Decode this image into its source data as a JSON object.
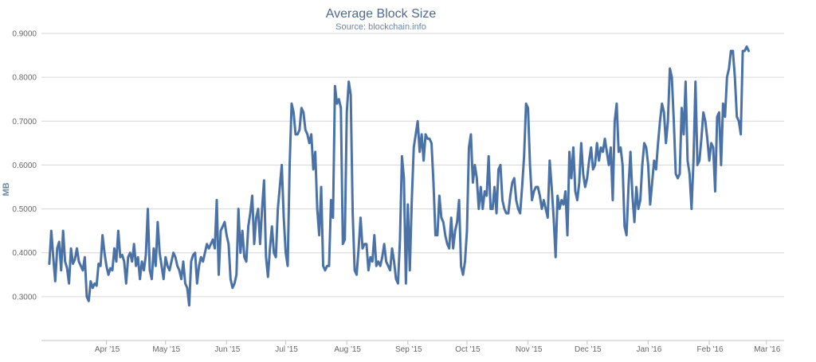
{
  "chart_data": {
    "type": "line",
    "title": "Average Block Size",
    "subtitle": "Source: blockchain.info",
    "xlabel": "",
    "ylabel": "MB",
    "ylim": [
      0.2,
      0.9
    ],
    "yticks": [
      0.3,
      0.4,
      0.5,
      0.6,
      0.7,
      0.8,
      0.9
    ],
    "ytick_labels": [
      "0.3000",
      "0.4000",
      "0.5000",
      "0.6000",
      "0.7000",
      "0.8000",
      "0.9000"
    ],
    "x_range_days": [
      -2,
      375
    ],
    "xticks": [
      {
        "label": "Apr '15",
        "day": 31
      },
      {
        "label": "May '15",
        "day": 61
      },
      {
        "label": "Jun '15",
        "day": 92
      },
      {
        "label": "Jul '15",
        "day": 122
      },
      {
        "label": "Aug '15",
        "day": 153
      },
      {
        "label": "Sep '15",
        "day": 184
      },
      {
        "label": "Oct '15",
        "day": 214
      },
      {
        "label": "Nov '15",
        "day": 245
      },
      {
        "label": "Dec '15",
        "day": 275
      },
      {
        "label": "Jan '16",
        "day": 306
      },
      {
        "label": "Feb '16",
        "day": 337
      },
      {
        "label": "Mar '16",
        "day": 366
      }
    ],
    "grid": true,
    "legend": "none",
    "color": "#4a72a6",
    "series": [
      {
        "name": "Average Block Size",
        "start_day": 2,
        "values": [
          0.375,
          0.45,
          0.39,
          0.335,
          0.41,
          0.425,
          0.36,
          0.45,
          0.38,
          0.365,
          0.33,
          0.41,
          0.375,
          0.385,
          0.41,
          0.38,
          0.37,
          0.36,
          0.39,
          0.3,
          0.29,
          0.335,
          0.32,
          0.33,
          0.325,
          0.375,
          0.37,
          0.44,
          0.4,
          0.37,
          0.35,
          0.365,
          0.36,
          0.41,
          0.38,
          0.45,
          0.39,
          0.395,
          0.38,
          0.33,
          0.39,
          0.4,
          0.38,
          0.42,
          0.37,
          0.39,
          0.34,
          0.38,
          0.36,
          0.395,
          0.5,
          0.36,
          0.34,
          0.41,
          0.37,
          0.47,
          0.4,
          0.37,
          0.34,
          0.39,
          0.37,
          0.36,
          0.38,
          0.4,
          0.39,
          0.37,
          0.36,
          0.34,
          0.38,
          0.33,
          0.32,
          0.28,
          0.38,
          0.395,
          0.4,
          0.33,
          0.37,
          0.39,
          0.38,
          0.4,
          0.42,
          0.41,
          0.42,
          0.43,
          0.41,
          0.52,
          0.35,
          0.45,
          0.46,
          0.47,
          0.44,
          0.42,
          0.34,
          0.32,
          0.33,
          0.35,
          0.5,
          0.4,
          0.45,
          0.39,
          0.38,
          0.46,
          0.49,
          0.53,
          0.42,
          0.48,
          0.5,
          0.42,
          0.5,
          0.565,
          0.39,
          0.345,
          0.41,
          0.46,
          0.4,
          0.39,
          0.5,
          0.55,
          0.6,
          0.48,
          0.4,
          0.37,
          0.6,
          0.74,
          0.72,
          0.67,
          0.67,
          0.68,
          0.73,
          0.72,
          0.68,
          0.67,
          0.65,
          0.67,
          0.59,
          0.63,
          0.5,
          0.44,
          0.55,
          0.37,
          0.36,
          0.37,
          0.37,
          0.52,
          0.48,
          0.78,
          0.74,
          0.75,
          0.73,
          0.42,
          0.43,
          0.72,
          0.79,
          0.76,
          0.49,
          0.36,
          0.35,
          0.41,
          0.48,
          0.41,
          0.42,
          0.42,
          0.36,
          0.39,
          0.38,
          0.44,
          0.37,
          0.38,
          0.37,
          0.39,
          0.42,
          0.38,
          0.37,
          0.36,
          0.41,
          0.38,
          0.34,
          0.33,
          0.43,
          0.62,
          0.57,
          0.33,
          0.51,
          0.36,
          0.52,
          0.64,
          0.67,
          0.7,
          0.63,
          0.67,
          0.61,
          0.67,
          0.66,
          0.66,
          0.65,
          0.56,
          0.44,
          0.44,
          0.53,
          0.48,
          0.47,
          0.44,
          0.42,
          0.41,
          0.48,
          0.41,
          0.45,
          0.47,
          0.52,
          0.37,
          0.35,
          0.38,
          0.45,
          0.64,
          0.67,
          0.56,
          0.6,
          0.57,
          0.5,
          0.55,
          0.5,
          0.54,
          0.53,
          0.62,
          0.5,
          0.5,
          0.55,
          0.49,
          0.59,
          0.6,
          0.52,
          0.5,
          0.49,
          0.49,
          0.53,
          0.56,
          0.57,
          0.52,
          0.5,
          0.49,
          0.55,
          0.62,
          0.74,
          0.73,
          0.6,
          0.52,
          0.54,
          0.55,
          0.55,
          0.53,
          0.5,
          0.52,
          0.5,
          0.48,
          0.61,
          0.55,
          0.48,
          0.39,
          0.53,
          0.5,
          0.52,
          0.51,
          0.54,
          0.44,
          0.63,
          0.57,
          0.64,
          0.54,
          0.52,
          0.56,
          0.65,
          0.58,
          0.55,
          0.57,
          0.61,
          0.64,
          0.59,
          0.6,
          0.65,
          0.61,
          0.64,
          0.63,
          0.66,
          0.63,
          0.6,
          0.64,
          0.52,
          0.7,
          0.74,
          0.63,
          0.64,
          0.6,
          0.46,
          0.44,
          0.55,
          0.63,
          0.53,
          0.47,
          0.55,
          0.5,
          0.52,
          0.6,
          0.65,
          0.64,
          0.6,
          0.51,
          0.56,
          0.61,
          0.59,
          0.65,
          0.7,
          0.74,
          0.72,
          0.65,
          0.7,
          0.82,
          0.8,
          0.7,
          0.58,
          0.57,
          0.58,
          0.73,
          0.67,
          0.79,
          0.61,
          0.58,
          0.5,
          0.61,
          0.79,
          0.6,
          0.61,
          0.66,
          0.72,
          0.7,
          0.66,
          0.61,
          0.65,
          0.64,
          0.54,
          0.71,
          0.72,
          0.6,
          0.74,
          0.71,
          0.8,
          0.82,
          0.86,
          0.86,
          0.8,
          0.71,
          0.7,
          0.67,
          0.86,
          0.86,
          0.87,
          0.86
        ]
      }
    ]
  }
}
